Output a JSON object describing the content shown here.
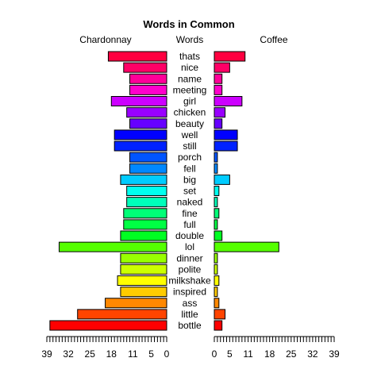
{
  "chart_data": {
    "type": "bar",
    "orientation": "horizontal-pyramid",
    "title": "Words in Common",
    "left_label": "Chardonnay",
    "center_label": "Words",
    "right_label": "Coffee",
    "left_ticks": [
      39,
      32,
      25,
      18,
      11,
      5,
      0
    ],
    "right_ticks": [
      0,
      5,
      11,
      18,
      25,
      32,
      39
    ],
    "xlim": [
      0,
      39
    ],
    "categories": [
      "thats",
      "nice",
      "name",
      "meeting",
      "girl",
      "chicken",
      "beauty",
      "well",
      "still",
      "porch",
      "fell",
      "big",
      "set",
      "naked",
      "fine",
      "full",
      "double",
      "lol",
      "dinner",
      "polite",
      "milkshake",
      "inspired",
      "ass",
      "little",
      "bottle"
    ],
    "series": [
      {
        "name": "Chardonnay",
        "values": [
          19,
          14,
          12,
          12,
          18,
          13,
          12,
          17,
          17,
          12,
          12,
          15,
          13,
          13,
          14,
          14,
          15,
          35,
          15,
          15,
          16,
          15,
          20,
          29,
          38
        ]
      },
      {
        "name": "Coffee",
        "values": [
          10,
          5,
          2.5,
          2.5,
          9,
          3.5,
          2.5,
          7.5,
          7.5,
          1,
          1,
          5,
          1.5,
          1,
          1.5,
          1,
          2.5,
          21,
          1,
          1,
          1.5,
          1,
          1.5,
          3.5,
          2.5
        ]
      }
    ],
    "colors": [
      "#ff0040",
      "#ff0066",
      "#ff0099",
      "#ff00cc",
      "#cc00ff",
      "#9900ff",
      "#6600ff",
      "#0000ff",
      "#0022ff",
      "#0055ff",
      "#0088ff",
      "#00ccff",
      "#00ffee",
      "#00ffbb",
      "#00ff77",
      "#00ff44",
      "#00ff22",
      "#55ff00",
      "#99ff00",
      "#ccff00",
      "#ffff00",
      "#ffcc00",
      "#ff8800",
      "#ff4400",
      "#ff0000"
    ]
  }
}
